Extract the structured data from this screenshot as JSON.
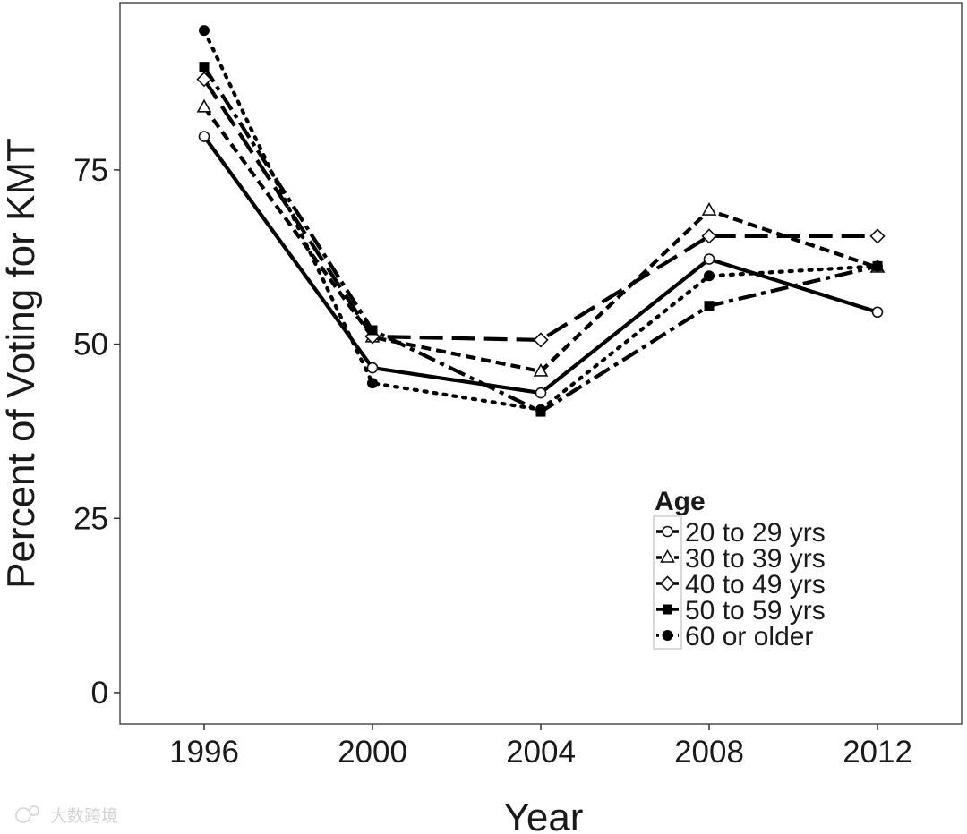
{
  "chart_data": {
    "type": "line",
    "title": "",
    "xlabel": "Year",
    "ylabel": "Percent of Voting for KMT",
    "x": [
      1996,
      2000,
      2004,
      2008,
      2012
    ],
    "x_tick_labels": [
      "1996",
      "2000",
      "2004",
      "2008",
      "2012"
    ],
    "y_ticks": [
      0,
      25,
      50,
      75
    ],
    "y_tick_labels": [
      "0",
      "25",
      "50",
      "75"
    ],
    "xlim": [
      1994,
      2014
    ],
    "ylim": [
      -4.5,
      99
    ],
    "grid": false,
    "legend": {
      "title": "Age",
      "placement": "bottom-right"
    },
    "series": [
      {
        "name": "20 to 29 yrs",
        "marker": "open-circle",
        "dash": "solid",
        "values": [
          79.8,
          46.6,
          43.0,
          62.2,
          54.6
        ]
      },
      {
        "name": "30 to 39 yrs",
        "marker": "open-triangle",
        "dash": "short-dash",
        "values": [
          84.0,
          51.0,
          46.1,
          69.2,
          61.0
        ]
      },
      {
        "name": "40 to 49 yrs",
        "marker": "open-diamond",
        "dash": "long-dash",
        "values": [
          88.0,
          51.1,
          50.6,
          65.5,
          65.5
        ]
      },
      {
        "name": "50 to 59 yrs",
        "marker": "filled-square",
        "dash": "dash-dot",
        "values": [
          89.8,
          52.0,
          40.3,
          55.5,
          61.2
        ]
      },
      {
        "name": "60 or older",
        "marker": "filled-circle",
        "dash": "dotted",
        "values": [
          95.0,
          44.4,
          40.6,
          59.8,
          61.2
        ]
      }
    ]
  },
  "watermark": {
    "text": "大数跨境"
  }
}
